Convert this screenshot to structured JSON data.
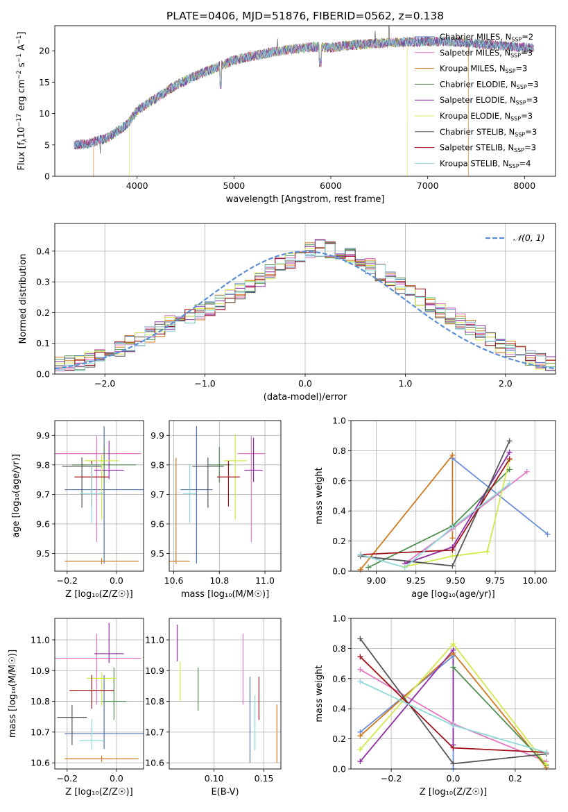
{
  "title": "PLATE=0406, MJD=51876, FIBERID=0562, z=0.138",
  "colors": {
    "chabrier_miles": "#4c72b0",
    "salpeter_miles": "#e377c2",
    "kroupa_miles": "#d17a1c",
    "chabrier_elodie": "#4f8f4f",
    "salpeter_elodie": "#8e2ca3",
    "kroupa_elodie": "#d4e84a",
    "chabrier_stelib": "#555555",
    "salpeter_stelib": "#a0111a",
    "kroupa_stelib": "#8fd8d8",
    "gauss": "#5a8ed6",
    "miles_chabrier_line": "#6a8fd8"
  },
  "legend_spectrum": [
    {
      "label": "Chabrier MILES, N",
      "sub": "SSP",
      "suffix": "=2"
    },
    {
      "label": "Salpeter MILES, N",
      "sub": "SSP",
      "suffix": "=3"
    },
    {
      "label": "Kroupa MILES, N",
      "sub": "SSP",
      "suffix": "=3"
    },
    {
      "label": "Chabrier ELODIE, N",
      "sub": "SSP",
      "suffix": "=3"
    },
    {
      "label": "Salpeter ELODIE, N",
      "sub": "SSP",
      "suffix": "=3"
    },
    {
      "label": "Kroupa ELODIE, N",
      "sub": "SSP",
      "suffix": "=3"
    },
    {
      "label": "Chabrier STELIB, N",
      "sub": "SSP",
      "suffix": "=3"
    },
    {
      "label": "Salpeter STELIB, N",
      "sub": "SSP",
      "suffix": "=3"
    },
    {
      "label": "Kroupa STELIB, N",
      "sub": "SSP",
      "suffix": "=4"
    }
  ],
  "chart_data": [
    {
      "id": "spectrum",
      "type": "line",
      "xlabel": "wavelength [Angstrom, rest frame]",
      "ylabel_pre": "Flux [f",
      "ylabel_sub": "λ",
      "ylabel_mid": "10",
      "ylabel_sup": "−17",
      "ylabel_post": " erg cm",
      "ylabel_sup2": "−2",
      "ylabel_post2": " s",
      "ylabel_sup3": "−1",
      "ylabel_post3": " A",
      "ylabel_sup4": "−1",
      "ylabel_end": "]",
      "xlim": [
        3150,
        8320
      ],
      "ylim": [
        0,
        24
      ],
      "xticks": [
        4000,
        5000,
        6000,
        7000,
        8000
      ],
      "yticks": [
        0,
        5,
        10,
        15,
        20
      ],
      "envelope": {
        "x": [
          3350,
          3500,
          3700,
          3900,
          4000,
          4200,
          4400,
          4600,
          4800,
          5000,
          5200,
          5400,
          5600,
          5800,
          6000,
          6200,
          6400,
          6600,
          6800,
          7000,
          7200,
          7400,
          7600,
          7800,
          8000,
          8100
        ],
        "y": [
          5.0,
          5.2,
          6.2,
          8.3,
          10.5,
          12.5,
          14.5,
          16.0,
          17.2,
          18.5,
          19.2,
          19.8,
          20.2,
          20.6,
          20.5,
          20.9,
          21.1,
          21.3,
          21.4,
          21.5,
          21.5,
          21.3,
          21.0,
          20.8,
          20.5,
          20.4
        ]
      },
      "grid": false
    },
    {
      "id": "residuals",
      "type": "bar",
      "xlabel": "(data-model)/error",
      "ylabel": "Normed distribution",
      "xlim": [
        -2.5,
        2.5
      ],
      "ylim": [
        0,
        0.49
      ],
      "xticks": [
        -2,
        -1,
        0,
        1,
        2
      ],
      "yticks": [
        0.0,
        0.1,
        0.2,
        0.3,
        0.4
      ],
      "bin_width": 0.1,
      "bin_start": -2.5,
      "grid": true,
      "legend": "𝒩(0, 1)",
      "legend_position": "top-right",
      "series_base": [
        0.028,
        0.032,
        0.038,
        0.045,
        0.06,
        0.073,
        0.085,
        0.1,
        0.115,
        0.13,
        0.15,
        0.165,
        0.18,
        0.19,
        0.2,
        0.215,
        0.23,
        0.25,
        0.27,
        0.29,
        0.31,
        0.33,
        0.35,
        0.37,
        0.385,
        0.4,
        0.41,
        0.405,
        0.4,
        0.39,
        0.37,
        0.35,
        0.33,
        0.31,
        0.29,
        0.27,
        0.25,
        0.23,
        0.21,
        0.19,
        0.17,
        0.15,
        0.13,
        0.11,
        0.095,
        0.08,
        0.066,
        0.052,
        0.04,
        0.03
      ]
    },
    {
      "id": "age-vs-z",
      "type": "scatter",
      "xlabel": "Z [log₁₀(Z/Z☉)]",
      "ylabel": "age  [log₁₀(age/yr)]",
      "xlim": [
        -0.25,
        0.11
      ],
      "ylim": [
        9.44,
        9.95
      ],
      "xticks": [
        -0.2,
        0.0
      ],
      "yticks": [
        9.5,
        9.6,
        9.7,
        9.8,
        9.9
      ],
      "grid": true,
      "points": [
        {
          "x": -0.05,
          "y": 9.716,
          "xerr": 0.16,
          "yerr_lo": 0.25,
          "yerr_hi": 0.215,
          "series": "chabrier_miles"
        },
        {
          "x": -0.08,
          "y": 9.838,
          "xerr": 0.18,
          "yerr_lo": 0.3,
          "yerr_hi": 0.06,
          "series": "salpeter_miles"
        },
        {
          "x": -0.06,
          "y": 9.474,
          "xerr": 0.15,
          "yerr_lo": 0.01,
          "yerr_hi": 0.01,
          "series": "kroupa_miles"
        },
        {
          "x": -0.05,
          "y": 9.8,
          "xerr": 0.13,
          "yerr_lo": 0.06,
          "yerr_hi": 0.06,
          "series": "chabrier_elodie"
        },
        {
          "x": -0.03,
          "y": 9.782,
          "xerr": 0.06,
          "yerr_lo": 0.03,
          "yerr_hi": 0.1,
          "series": "salpeter_elodie"
        },
        {
          "x": -0.06,
          "y": 9.814,
          "xerr": 0.07,
          "yerr_lo": 0.2,
          "yerr_hi": 0.02,
          "series": "kroupa_elodie"
        },
        {
          "x": -0.14,
          "y": 9.795,
          "xerr": 0.08,
          "yerr_lo": 0.14,
          "yerr_hi": 0.03,
          "series": "chabrier_stelib"
        },
        {
          "x": -0.1,
          "y": 9.759,
          "xerr": 0.07,
          "yerr_lo": 0.1,
          "yerr_hi": 0.055,
          "series": "salpeter_stelib"
        },
        {
          "x": -0.1,
          "y": 9.703,
          "xerr": 0.05,
          "yerr_lo": 0.1,
          "yerr_hi": 0.1,
          "series": "kroupa_stelib"
        }
      ]
    },
    {
      "id": "age-vs-mass",
      "type": "scatter",
      "xlabel": "mass [log₁₀(M/M☉)]",
      "ylabel": "",
      "xlim": [
        10.58,
        11.07
      ],
      "ylim": [
        9.44,
        9.95
      ],
      "xticks": [
        10.6,
        10.8,
        11.0
      ],
      "yticks": [
        9.5,
        9.6,
        9.7,
        9.8,
        9.9
      ],
      "grid": true,
      "points": [
        {
          "x": 10.7,
          "y": 9.716,
          "xerr": 0.07,
          "yerr_lo": 0.25,
          "yerr_hi": 0.215,
          "series": "chabrier_miles"
        },
        {
          "x": 10.94,
          "y": 9.838,
          "xerr": 0.06,
          "yerr_lo": 0.3,
          "yerr_hi": 0.06,
          "series": "salpeter_miles"
        },
        {
          "x": 10.61,
          "y": 9.474,
          "xerr": 0.06,
          "yerr_lo": 0.01,
          "yerr_hi": 0.35,
          "series": "kroupa_miles"
        },
        {
          "x": 10.8,
          "y": 9.8,
          "xerr": 0.05,
          "yerr_lo": 0.06,
          "yerr_hi": 0.06,
          "series": "chabrier_elodie"
        },
        {
          "x": 10.95,
          "y": 9.782,
          "xerr": 0.04,
          "yerr_lo": 0.04,
          "yerr_hi": 0.11,
          "series": "salpeter_elodie"
        },
        {
          "x": 10.87,
          "y": 9.814,
          "xerr": 0.05,
          "yerr_lo": 0.2,
          "yerr_hi": 0.09,
          "series": "kroupa_elodie"
        },
        {
          "x": 10.75,
          "y": 9.795,
          "xerr": 0.07,
          "yerr_lo": 0.14,
          "yerr_hi": 0.03,
          "series": "chabrier_stelib"
        },
        {
          "x": 10.84,
          "y": 9.759,
          "xerr": 0.05,
          "yerr_lo": 0.1,
          "yerr_hi": 0.055,
          "series": "salpeter_stelib"
        },
        {
          "x": 10.67,
          "y": 9.703,
          "xerr": 0.03,
          "yerr_lo": 0.1,
          "yerr_hi": 0.1,
          "series": "kroupa_stelib"
        }
      ]
    },
    {
      "id": "weight-vs-age",
      "type": "line",
      "xlabel": "age  [log₁₀(age/yr)]",
      "ylabel": "mass weight",
      "xlim": [
        8.84,
        10.13
      ],
      "ylim": [
        0,
        1.0
      ],
      "xticks": [
        9.0,
        9.25,
        9.5,
        9.75,
        10.0
      ],
      "yticks": [
        0.0,
        0.2,
        0.4,
        0.6,
        0.8,
        1.0
      ],
      "grid": true,
      "series": [
        {
          "key": "chabrier_miles",
          "x": [
            9.48,
            10.08
          ],
          "y": [
            0.75,
            0.245
          ]
        },
        {
          "key": "salpeter_miles",
          "x": [
            9.18,
            9.48,
            9.95
          ],
          "y": [
            0.05,
            0.28,
            0.66
          ]
        },
        {
          "key": "kroupa_miles",
          "x": [
            8.9,
            9.48,
            9.48
          ],
          "y": [
            0.01,
            0.77,
            0.22
          ]
        },
        {
          "key": "chabrier_elodie",
          "x": [
            8.95,
            9.48,
            9.84
          ],
          "y": [
            0.025,
            0.3,
            0.675
          ]
        },
        {
          "key": "salpeter_elodie",
          "x": [
            9.18,
            9.48,
            9.84
          ],
          "y": [
            0.05,
            0.16,
            0.79
          ]
        },
        {
          "key": "kroupa_elodie",
          "x": [
            9.18,
            9.48,
            9.7,
            9.84
          ],
          "y": [
            0.03,
            0.1,
            0.13,
            0.74
          ]
        },
        {
          "key": "chabrier_stelib",
          "x": [
            8.9,
            9.48,
            9.84
          ],
          "y": [
            0.1,
            0.035,
            0.865
          ]
        },
        {
          "key": "salpeter_stelib",
          "x": [
            8.9,
            9.48,
            9.84
          ],
          "y": [
            0.11,
            0.14,
            0.745
          ]
        },
        {
          "key": "kroupa_stelib",
          "x": [
            8.9,
            9.18,
            9.48,
            9.84
          ],
          "y": [
            0.11,
            0.025,
            0.29,
            0.58
          ]
        }
      ]
    },
    {
      "id": "mass-vs-z",
      "type": "scatter",
      "xlabel": "Z [log₁₀(Z/Z☉)]",
      "ylabel": "mass [log₁₀(M/M☉)]",
      "xlim": [
        -0.25,
        0.11
      ],
      "ylim": [
        10.58,
        11.07
      ],
      "xticks": [
        -0.2,
        0.0
      ],
      "yticks": [
        10.6,
        10.7,
        10.8,
        10.9,
        11.0
      ],
      "grid": true,
      "points": [
        {
          "x": -0.05,
          "y": 10.695,
          "xerr": 0.16,
          "yerr_lo": 0.05,
          "yerr_hi": 0.19,
          "series": "chabrier_miles"
        },
        {
          "x": -0.08,
          "y": 10.94,
          "xerr": 0.18,
          "yerr_lo": 0.15,
          "yerr_hi": 0.08,
          "series": "salpeter_miles"
        },
        {
          "x": -0.06,
          "y": 10.613,
          "xerr": 0.15,
          "yerr_lo": 0.01,
          "yerr_hi": 0.01,
          "series": "kroupa_miles"
        },
        {
          "x": -0.01,
          "y": 10.8,
          "xerr": 0.05,
          "yerr_lo": 0.06,
          "yerr_hi": 0.11,
          "series": "chabrier_elodie"
        },
        {
          "x": -0.03,
          "y": 10.955,
          "xerr": 0.06,
          "yerr_lo": 0.03,
          "yerr_hi": 0.1,
          "series": "salpeter_elodie"
        },
        {
          "x": -0.06,
          "y": 10.875,
          "xerr": 0.06,
          "yerr_lo": 0.09,
          "yerr_hi": 0.02,
          "series": "kroupa_elodie"
        },
        {
          "x": -0.18,
          "y": 10.748,
          "xerr": 0.06,
          "yerr_lo": 0.09,
          "yerr_hi": 0.04,
          "series": "chabrier_stelib"
        },
        {
          "x": -0.1,
          "y": 10.836,
          "xerr": 0.09,
          "yerr_lo": 0.06,
          "yerr_hi": 0.05,
          "series": "salpeter_stelib"
        },
        {
          "x": -0.1,
          "y": 10.672,
          "xerr": 0.05,
          "yerr_lo": 0.03,
          "yerr_hi": 0.07,
          "series": "kroupa_stelib"
        }
      ]
    },
    {
      "id": "mass-vs-ebv",
      "type": "scatter",
      "xlabel": "E(B-V)",
      "ylabel": "",
      "xlim": [
        0.055,
        0.167
      ],
      "ylim": [
        10.58,
        11.07
      ],
      "xticks": [
        0.1,
        0.15
      ],
      "yticks": [
        10.6,
        10.7,
        10.8,
        10.9,
        11.0
      ],
      "grid": true,
      "points": [
        {
          "x": 0.136,
          "y": 10.75,
          "yerr_lo": 0.15,
          "yerr_hi": 0.13,
          "series": "chabrier_miles"
        },
        {
          "x": 0.129,
          "y": 10.95,
          "yerr_lo": 0.16,
          "yerr_hi": 0.07,
          "series": "salpeter_miles"
        },
        {
          "x": 0.163,
          "y": 10.7,
          "yerr_lo": 0.1,
          "yerr_hi": 0.09,
          "series": "kroupa_miles"
        },
        {
          "x": 0.084,
          "y": 10.84,
          "yerr_lo": 0.07,
          "yerr_hi": 0.07,
          "series": "chabrier_elodie"
        },
        {
          "x": 0.063,
          "y": 10.99,
          "yerr_lo": 0.06,
          "yerr_hi": 0.06,
          "series": "salpeter_elodie"
        },
        {
          "x": 0.066,
          "y": 10.87,
          "yerr_lo": 0.07,
          "yerr_hi": 0.06,
          "series": "kroupa_elodie"
        },
        {
          "x": 0.145,
          "y": 10.8,
          "yerr_lo": 0.06,
          "yerr_hi": 0.08,
          "series": "salpeter_stelib"
        },
        {
          "x": 0.141,
          "y": 10.73,
          "yerr_lo": 0.09,
          "yerr_hi": 0.09,
          "series": "kroupa_stelib"
        }
      ]
    },
    {
      "id": "weight-vs-z",
      "type": "line",
      "xlabel": "Z [log₁₀(Z/Z☉)]",
      "ylabel": "mass weight",
      "xlim": [
        -0.33,
        0.33
      ],
      "ylim": [
        0,
        1.0
      ],
      "xticks": [
        -0.2,
        0.0,
        0.2
      ],
      "yticks": [
        0.0,
        0.2,
        0.4,
        0.6,
        0.8,
        1.0
      ],
      "grid": true,
      "series": [
        {
          "key": "chabrier_miles",
          "x": [
            -0.3,
            0.0,
            0.0
          ],
          "y": [
            0.245,
            0.75,
            0.0
          ]
        },
        {
          "key": "salpeter_miles",
          "x": [
            -0.3,
            0.0,
            0.3
          ],
          "y": [
            0.66,
            0.3,
            0.05
          ]
        },
        {
          "key": "kroupa_miles",
          "x": [
            -0.3,
            0.0,
            0.3
          ],
          "y": [
            0.22,
            0.77,
            0.01
          ]
        },
        {
          "key": "chabrier_elodie",
          "x": [
            0.0,
            0.3
          ],
          "y": [
            0.675,
            0.025
          ]
        },
        {
          "key": "salpeter_elodie",
          "x": [
            -0.3,
            0.0,
            0.0
          ],
          "y": [
            0.05,
            0.79,
            0.16
          ]
        },
        {
          "key": "kroupa_elodie",
          "x": [
            -0.3,
            0.0,
            0.3
          ],
          "y": [
            0.13,
            0.83,
            0.03
          ]
        },
        {
          "key": "chabrier_stelib",
          "x": [
            -0.3,
            0.0,
            0.3
          ],
          "y": [
            0.865,
            0.035,
            0.1
          ]
        },
        {
          "key": "salpeter_stelib",
          "x": [
            -0.3,
            0.0,
            0.3
          ],
          "y": [
            0.745,
            0.14,
            0.11
          ]
        },
        {
          "key": "kroupa_stelib",
          "x": [
            -0.3,
            0.0,
            0.3
          ],
          "y": [
            0.58,
            0.29,
            0.11
          ]
        }
      ]
    }
  ]
}
